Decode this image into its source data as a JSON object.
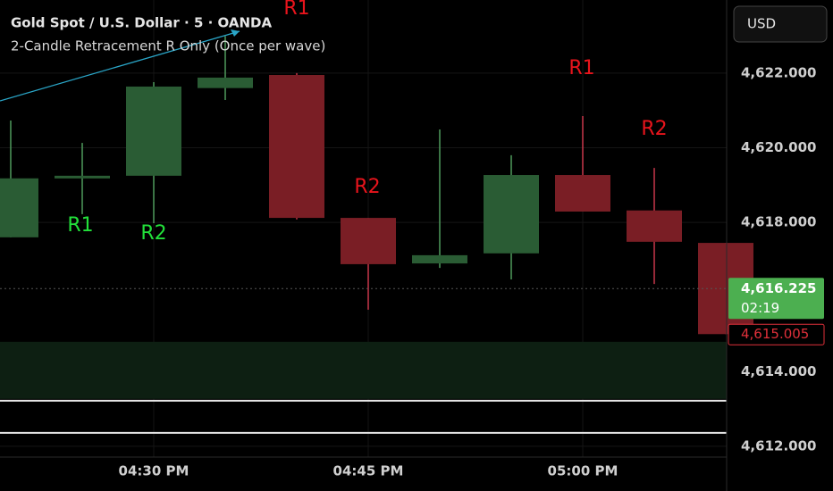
{
  "chart_data": {
    "type": "candlestick",
    "title": "Gold Spot / U.S. Dollar · 5 · OANDA",
    "subtitle": "2-Candle Retracement R Only (Once per wave)",
    "currency": "USD",
    "categories": [
      null,
      null,
      "04:30 PM",
      null,
      null,
      "04:45 PM",
      null,
      null,
      "05:00 PM",
      null,
      null
    ],
    "open": [
      4617.6,
      4619.2,
      4619.25,
      4621.6,
      4621.95,
      4618.12,
      4616.9,
      4617.17,
      4619.27,
      4618.32,
      4617.45
    ],
    "high": [
      4620.73,
      4620.13,
      4621.76,
      4622.99,
      4622.0,
      4618.12,
      4620.49,
      4619.8,
      4620.85,
      4619.46,
      4617.45
    ],
    "low": [
      4617.6,
      4618.22,
      4617.98,
      4621.28,
      4618.08,
      4615.66,
      4616.78,
      4616.47,
      4618.29,
      4616.35,
      4615.005
    ],
    "close": [
      4619.18,
      4619.25,
      4621.64,
      4621.88,
      4618.12,
      4616.88,
      4617.12,
      4619.27,
      4618.29,
      4617.48,
      4615.005
    ],
    "up_color": "#2a5c34",
    "down_color": "#7a1e25",
    "up_wick": "#4f9a5c",
    "down_wick": "#c8374a",
    "annotations": [
      {
        "text": "R1",
        "color": "#22e03a"
      },
      {
        "text": "R2",
        "color": "#22e03a"
      },
      {
        "text": "R1",
        "color": "#e8141c"
      },
      {
        "text": "R2",
        "color": "#e8141c"
      },
      {
        "text": "R1",
        "color": "#e8141c"
      },
      {
        "text": "R2",
        "color": "#e8141c"
      }
    ],
    "zone": [
      4613.27,
      4614.8
    ],
    "levels": [
      4613.22,
      4612.36
    ],
    "price_labels": [
      {
        "value": 4616.225,
        "label": "4,616.225",
        "color": "#4caf50"
      },
      {
        "value": 4615.005,
        "label": "4,615.005",
        "color": "#e0303a"
      }
    ],
    "countdown": "02:19",
    "ylim": [
      4611.71,
      4623.96
    ],
    "yticks": [
      {
        "value": 4622,
        "label": "4,622.000"
      },
      {
        "value": 4620,
        "label": "4,620.000"
      },
      {
        "value": 4618,
        "label": "4,618.000"
      },
      {
        "value": 4614,
        "label": "4,614.000"
      },
      {
        "value": 4612,
        "label": "4,612.000"
      }
    ],
    "grid": true
  }
}
